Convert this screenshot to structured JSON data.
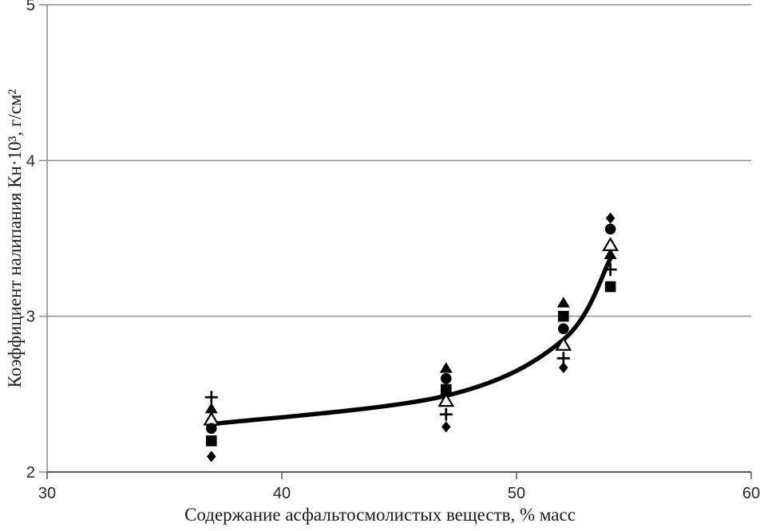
{
  "chart_data": {
    "type": "scatter",
    "title": "",
    "xlabel": "Содержание асфальтосмолистых веществ, % масс",
    "ylabel": "Коэффициент налипания Кн·10³, г/см²",
    "xlim": [
      30,
      60
    ],
    "ylim": [
      2,
      5
    ],
    "xticks": [
      30,
      40,
      50,
      60
    ],
    "yticks": [
      2,
      3,
      4,
      5
    ],
    "grid": "horizontal",
    "legend": "none",
    "x": [
      37,
      47,
      52,
      54
    ],
    "series": [
      {
        "name": "filled-triangle",
        "marker": "triangle-filled",
        "values": [
          2.41,
          2.67,
          3.09,
          3.4
        ]
      },
      {
        "name": "open-triangle",
        "marker": "triangle-open",
        "values": [
          2.34,
          2.46,
          2.82,
          3.46
        ]
      },
      {
        "name": "filled-circle",
        "marker": "circle-filled",
        "values": [
          2.28,
          2.6,
          2.92,
          3.56
        ]
      },
      {
        "name": "filled-square",
        "marker": "square-filled",
        "values": [
          2.2,
          2.53,
          3.0,
          3.19
        ]
      },
      {
        "name": "plus",
        "marker": "plus",
        "values": [
          2.48,
          2.37,
          2.73,
          3.3
        ]
      },
      {
        "name": "filled-diamond",
        "marker": "diamond-filled",
        "values": [
          2.1,
          2.29,
          2.67,
          3.63
        ]
      }
    ],
    "trend_line": {
      "x": [
        37.2,
        47,
        52,
        54
      ],
      "y": [
        2.31,
        2.49,
        2.85,
        3.37
      ]
    }
  },
  "colors": {
    "marker": "#000000",
    "trend_line": "#000000",
    "gridline": "#8c8c8c",
    "axis": "#595959",
    "text": "#1a1a1a",
    "background": "#ffffff"
  }
}
